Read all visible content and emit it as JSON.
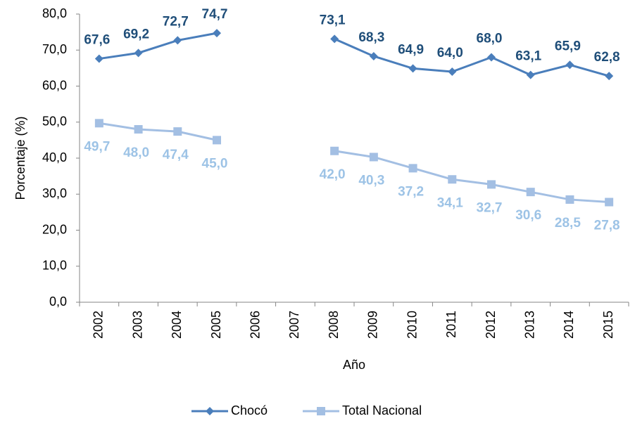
{
  "chart_data": {
    "type": "line",
    "categories": [
      "2002",
      "2003",
      "2004",
      "2005",
      "2006",
      "2007",
      "2008",
      "2009",
      "2010",
      "2011",
      "2012",
      "2013",
      "2014",
      "2015"
    ],
    "x_label": "Año",
    "y_label": "Porcentaje (%)",
    "ylim": [
      0,
      80
    ],
    "yticks": [
      {
        "value": 0,
        "label": "0,0"
      },
      {
        "value": 10,
        "label": "10,0"
      },
      {
        "value": 20,
        "label": "20,0"
      },
      {
        "value": 30,
        "label": "30,0"
      },
      {
        "value": 40,
        "label": "40,0"
      },
      {
        "value": 50,
        "label": "50,0"
      },
      {
        "value": 60,
        "label": "60,0"
      },
      {
        "value": 70,
        "label": "70,0"
      },
      {
        "value": 80,
        "label": "80,0"
      }
    ],
    "legend": "bottom",
    "series": [
      {
        "name": "Chocó",
        "color": "#4a7ebb",
        "label_color": "#1f4e79",
        "marker": "diamond",
        "values": [
          67.6,
          69.2,
          72.7,
          74.7,
          null,
          null,
          73.1,
          68.3,
          64.9,
          64.0,
          68.0,
          63.1,
          65.9,
          62.8
        ],
        "value_labels": [
          "67,6",
          "69,2",
          "72,7",
          "74,7",
          null,
          null,
          "73,1",
          "68,3",
          "64,9",
          "64,0",
          "68,0",
          "63,1",
          "65,9",
          "62,8"
        ]
      },
      {
        "name": "Total Nacional",
        "color": "#a3bfe3",
        "label_color": "#9dc3e6",
        "marker": "square",
        "values": [
          49.7,
          48.0,
          47.4,
          45.0,
          null,
          null,
          42.0,
          40.3,
          37.2,
          34.1,
          32.7,
          30.6,
          28.5,
          27.8
        ],
        "value_labels": [
          "49,7",
          "48,0",
          "47,4",
          "45,0",
          null,
          null,
          "42,0",
          "40,3",
          "37,2",
          "34,1",
          "32,7",
          "30,6",
          "28,5",
          "27,8"
        ]
      }
    ]
  }
}
